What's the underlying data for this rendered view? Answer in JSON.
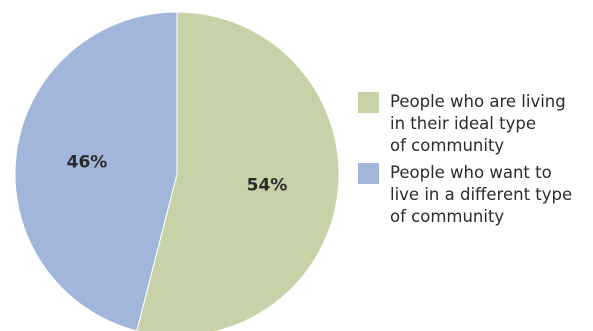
{
  "chart_data": {
    "type": "pie",
    "title": "",
    "slices": [
      {
        "name": "People who are living\nin their ideal type\nof community",
        "value": 54,
        "label": "54%",
        "color": "#c8d2a8"
      },
      {
        "name": "People who want to\nlive in a different type\nof community",
        "value": 46,
        "label": "46%",
        "color": "#a2b5db"
      }
    ],
    "legend_placement": "right"
  }
}
